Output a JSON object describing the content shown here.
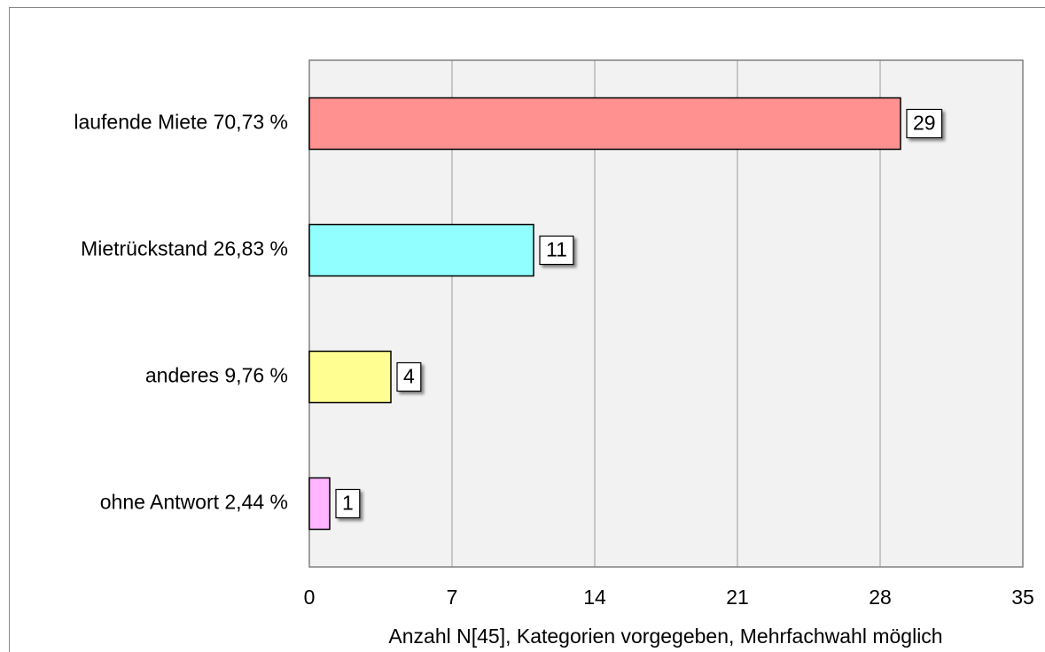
{
  "chart_data": {
    "type": "bar",
    "orientation": "horizontal",
    "categories": [
      "laufende Miete 70,73 %",
      "Mietrückstand 26,83 %",
      "anderes 9,76 %",
      "ohne Antwort 2,44 %"
    ],
    "values": [
      29,
      11,
      4,
      1
    ],
    "colors": [
      "#ff9191",
      "#91ffff",
      "#ffff91",
      "#ffb5ff"
    ],
    "xlim": [
      0,
      35
    ],
    "xticks": [
      0,
      7,
      14,
      21,
      28,
      35
    ],
    "x_label": "Anzahl N[45], Kategorien vorgegeben, Mehrfachwahl möglich",
    "grid": true
  }
}
